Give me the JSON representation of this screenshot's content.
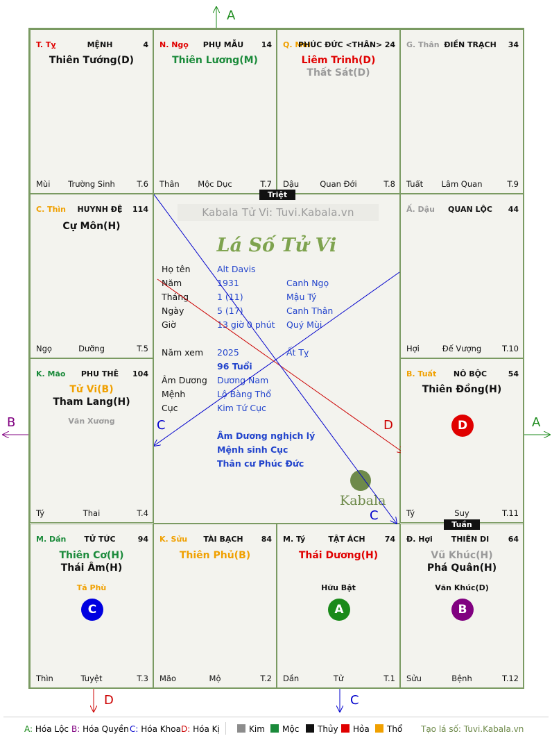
{
  "top_arrow_label": "A",
  "left_arrow_label": "B",
  "right_arrow_label": "A",
  "bottom_left_arrow_label": "D",
  "bottom_right_arrow_label": "C",
  "center_arrow_labels": {
    "c_left": "C",
    "d": "D",
    "c_bottom": "C"
  },
  "tags": {
    "triet": "Triệt",
    "tuan": "Tuần"
  },
  "cells": [
    {
      "branch": "T. Tỵ",
      "palace": "MỆNH",
      "num": "4",
      "stars": [
        "Thiên Tướng(D)"
      ],
      "minors": [],
      "bottom": [
        "Mùi",
        "Trường Sinh",
        "T.6"
      ]
    },
    {
      "branch": "N. Ngọ",
      "palace": "PHỤ MẪU",
      "num": "14",
      "stars": [
        "Thiên Lương(M)"
      ],
      "minors": [],
      "bottom": [
        "Thân",
        "Mộc Dục",
        "T.7"
      ]
    },
    {
      "branch": "Q. Mùi",
      "palace": "PHÚC ĐỨC <THÂN>",
      "num": "24",
      "stars": [
        "Liêm Trinh(D)",
        "Thất Sát(D)"
      ],
      "minors": [],
      "bottom": [
        "Dậu",
        "Quan Đới",
        "T.8"
      ]
    },
    {
      "branch": "G. Thân",
      "palace": "ĐIỀN TRẠCH",
      "num": "34",
      "stars": [],
      "minors": [],
      "bottom": [
        "Tuất",
        "Lâm Quan",
        "T.9"
      ]
    },
    {
      "branch": "C. Thìn",
      "palace": "HUYNH ĐỆ",
      "num": "114",
      "stars": [
        "Cự Môn(H)"
      ],
      "minors": [],
      "bottom": [
        "Ngọ",
        "Dưỡng",
        "T.5"
      ]
    },
    {
      "branch": "Ấ. Dậu",
      "palace": "QUAN LỘC",
      "num": "44",
      "stars": [],
      "minors": [],
      "bottom": [
        "Hợi",
        "Đế Vượng",
        "T.10"
      ]
    },
    {
      "branch": "K. Mão",
      "palace": "PHU THÊ",
      "num": "104",
      "stars": [
        "Tử Vi(B)",
        "Tham Lang(H)"
      ],
      "minors": [
        "Văn Xương"
      ],
      "bottom": [
        "Tý",
        "Thai",
        "T.4"
      ]
    },
    {
      "branch": "B. Tuất",
      "palace": "NÔ BỘC",
      "num": "54",
      "stars": [
        "Thiên Đồng(H)"
      ],
      "minors": [],
      "badge": "D",
      "bottom": [
        "Tý",
        "Suy",
        "T.11"
      ]
    },
    {
      "branch": "M. Dần",
      "palace": "TỬ TỨC",
      "num": "94",
      "stars": [
        "Thiên Cơ(H)",
        "Thái Âm(H)"
      ],
      "minors": [
        "Tả Phù"
      ],
      "badge": "C",
      "bottom": [
        "Thìn",
        "Tuyệt",
        "T.3"
      ]
    },
    {
      "branch": "K. Sửu",
      "palace": "TÀI BẠCH",
      "num": "84",
      "stars": [
        "Thiên Phủ(B)"
      ],
      "minors": [],
      "bottom": [
        "Mão",
        "Mộ",
        "T.2"
      ]
    },
    {
      "branch": "M. Tý",
      "palace": "TẬT ÁCH",
      "num": "74",
      "stars": [
        "Thái Dương(H)"
      ],
      "minors": [
        "Hữu Bật"
      ],
      "badge": "A",
      "bottom": [
        "Dần",
        "Tử",
        "T.1"
      ]
    },
    {
      "branch": "Đ. Hợi",
      "palace": "THIÊN DI",
      "num": "64",
      "stars": [
        "Vũ Khúc(H)",
        "Phá Quân(H)"
      ],
      "minors": [
        "Văn Khúc(D)"
      ],
      "badge": "B",
      "bottom": [
        "Sửu",
        "Bệnh",
        "T.12"
      ]
    }
  ],
  "center": {
    "watermark": "Kabala Tử Vi: Tuvi.Kabala.vn",
    "title": "Lá Số Tử Vi",
    "rows": [
      {
        "label": "Họ tên",
        "v1": "Alt Davis",
        "v2": ""
      },
      {
        "label": "Năm",
        "v1": "1931",
        "v2": "Canh Ngọ"
      },
      {
        "label": "Tháng",
        "v1": "1  (11)",
        "v2": "Mậu Tý"
      },
      {
        "label": "Ngày",
        "v1": "5  (17)",
        "v2": "Canh Thân"
      },
      {
        "label": "Giờ",
        "v1": "13 giờ 0 phút",
        "v2": "Quý Mùi"
      }
    ],
    "year_view": {
      "label": "Năm xem",
      "v1": "2025",
      "v2": "Ất Tỵ"
    },
    "age": "96 Tuổi",
    "rows2": [
      {
        "label": "Âm Dương",
        "value": "Dương Nam"
      },
      {
        "label": "Mệnh",
        "value": "Lộ Bàng Thổ"
      },
      {
        "label": "Cục",
        "value": "Kim Tứ Cục"
      }
    ],
    "notes": [
      "Âm Dương nghịch lý",
      "Mệnh sinh Cục",
      "Thân cư Phúc Đức"
    ],
    "logo_text": "Kabala"
  },
  "legend": {
    "items": [
      {
        "key": "A:",
        "text": "Hóa Lộc",
        "color": "#1a8a1a"
      },
      {
        "key": "B:",
        "text": "Hóa Quyền",
        "color": "#800080"
      },
      {
        "key": "C:",
        "text": "Hóa Khoa",
        "color": "#0000cc"
      },
      {
        "key": "D:",
        "text": "Hóa Kị",
        "color": "#cc0000"
      }
    ],
    "elements": [
      {
        "name": "Kim",
        "color": "#8c8c8c"
      },
      {
        "name": "Mộc",
        "color": "#1a8a3a"
      },
      {
        "name": "Thủy",
        "color": "#111111"
      },
      {
        "name": "Hỏa",
        "color": "#e00000"
      },
      {
        "name": "Thổ",
        "color": "#f0a000"
      }
    ],
    "site": "Tạo lá số: Tuvi.Kabala.vn"
  }
}
